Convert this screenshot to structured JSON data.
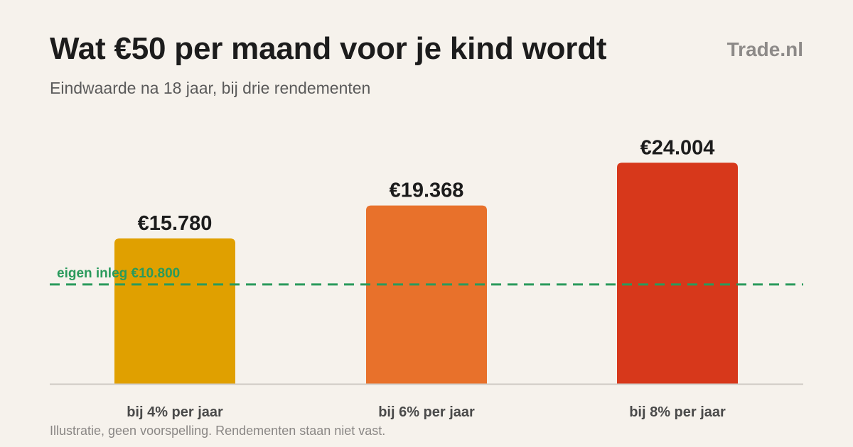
{
  "header": {
    "title": "Wat €50 per maand voor je kind wordt",
    "subtitle": "Eindwaarde na 18 jaar, bij drie rendementen",
    "brand": "Trade.nl"
  },
  "footnote": "Illustratie, geen voorspelling. Rendementen staan niet vast.",
  "colors": {
    "background": "#f6f2ec",
    "bar_4": "#e0a000",
    "bar_6": "#e8712b",
    "bar_8": "#d7381b",
    "reference_line": "#2a9a5c",
    "axis": "#cfcac4"
  },
  "chart_data": {
    "type": "bar",
    "categories": [
      "bij 4% per jaar",
      "bij 6% per jaar",
      "bij 8% per jaar"
    ],
    "values": [
      15780,
      19368,
      24004
    ],
    "value_labels": [
      "€15.780",
      "€19.368",
      "€24.004"
    ],
    "ylim": [
      0,
      26000
    ],
    "grid": false,
    "reference_line": {
      "value": 10800,
      "label": "eigen inleg €10.800",
      "style": "dashed"
    }
  }
}
